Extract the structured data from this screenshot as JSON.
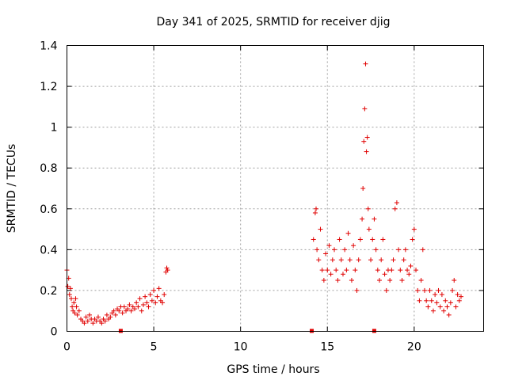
{
  "chart_data": {
    "type": "scatter",
    "title": "Day 341 of 2025, SRMTID for receiver djig",
    "xlabel": "GPS time / hours",
    "ylabel": "SRMTID / TECUs",
    "xlim": [
      0,
      24
    ],
    "ylim": [
      0,
      1.4
    ],
    "xticks": [
      0,
      5,
      10,
      15,
      20
    ],
    "yticks": [
      0,
      0.2,
      0.4,
      0.6,
      0.8,
      1,
      1.2,
      1.4
    ],
    "ytick_labels": [
      "0",
      "0.2",
      "0.4",
      "0.6",
      "0.8",
      "1",
      "1.2",
      "1.4"
    ],
    "grid": true,
    "marker": "+",
    "color": "#e00000",
    "series": [
      {
        "name": "SRMTID",
        "points": [
          [
            0.0,
            0.3
          ],
          [
            0.05,
            0.22
          ],
          [
            0.1,
            0.26
          ],
          [
            0.15,
            0.18
          ],
          [
            0.2,
            0.21
          ],
          [
            0.25,
            0.16
          ],
          [
            0.3,
            0.12
          ],
          [
            0.35,
            0.1
          ],
          [
            0.4,
            0.14
          ],
          [
            0.45,
            0.09
          ],
          [
            0.5,
            0.16
          ],
          [
            0.55,
            0.12
          ],
          [
            0.6,
            0.08
          ],
          [
            0.7,
            0.1
          ],
          [
            0.8,
            0.06
          ],
          [
            0.9,
            0.05
          ],
          [
            1.0,
            0.04
          ],
          [
            1.1,
            0.07
          ],
          [
            1.2,
            0.05
          ],
          [
            1.3,
            0.08
          ],
          [
            1.4,
            0.06
          ],
          [
            1.5,
            0.04
          ],
          [
            1.6,
            0.06
          ],
          [
            1.7,
            0.05
          ],
          [
            1.8,
            0.07
          ],
          [
            1.9,
            0.05
          ],
          [
            2.0,
            0.04
          ],
          [
            2.1,
            0.06
          ],
          [
            2.2,
            0.05
          ],
          [
            2.3,
            0.08
          ],
          [
            2.4,
            0.06
          ],
          [
            2.5,
            0.07
          ],
          [
            2.6,
            0.09
          ],
          [
            2.7,
            0.1
          ],
          [
            2.8,
            0.08
          ],
          [
            2.9,
            0.11
          ],
          [
            3.0,
            0.1
          ],
          [
            3.1,
            0.12
          ],
          [
            3.2,
            0.09
          ],
          [
            3.3,
            0.12
          ],
          [
            3.4,
            0.1
          ],
          [
            3.5,
            0.11
          ],
          [
            3.6,
            0.13
          ],
          [
            3.7,
            0.1
          ],
          [
            3.8,
            0.12
          ],
          [
            3.9,
            0.11
          ],
          [
            4.0,
            0.14
          ],
          [
            4.1,
            0.12
          ],
          [
            4.2,
            0.16
          ],
          [
            4.3,
            0.1
          ],
          [
            4.4,
            0.13
          ],
          [
            4.5,
            0.17
          ],
          [
            4.6,
            0.14
          ],
          [
            4.7,
            0.12
          ],
          [
            4.8,
            0.18
          ],
          [
            4.9,
            0.15
          ],
          [
            5.0,
            0.2
          ],
          [
            5.1,
            0.14
          ],
          [
            5.2,
            0.17
          ],
          [
            5.3,
            0.21
          ],
          [
            5.4,
            0.15
          ],
          [
            5.5,
            0.14
          ],
          [
            5.6,
            0.18
          ],
          [
            5.7,
            0.29
          ],
          [
            5.75,
            0.31
          ],
          [
            5.8,
            0.3
          ],
          [
            14.2,
            0.45
          ],
          [
            14.3,
            0.58
          ],
          [
            14.35,
            0.6
          ],
          [
            14.4,
            0.4
          ],
          [
            14.5,
            0.35
          ],
          [
            14.6,
            0.5
          ],
          [
            14.7,
            0.3
          ],
          [
            14.8,
            0.25
          ],
          [
            14.9,
            0.38
          ],
          [
            15.0,
            0.3
          ],
          [
            15.1,
            0.42
          ],
          [
            15.2,
            0.28
          ],
          [
            15.3,
            0.35
          ],
          [
            15.4,
            0.4
          ],
          [
            15.5,
            0.3
          ],
          [
            15.6,
            0.25
          ],
          [
            15.7,
            0.45
          ],
          [
            15.8,
            0.35
          ],
          [
            15.9,
            0.28
          ],
          [
            16.0,
            0.4
          ],
          [
            16.1,
            0.3
          ],
          [
            16.2,
            0.48
          ],
          [
            16.3,
            0.35
          ],
          [
            16.4,
            0.25
          ],
          [
            16.5,
            0.42
          ],
          [
            16.6,
            0.3
          ],
          [
            16.7,
            0.2
          ],
          [
            16.8,
            0.35
          ],
          [
            16.9,
            0.45
          ],
          [
            17.0,
            0.55
          ],
          [
            17.05,
            0.7
          ],
          [
            17.1,
            0.93
          ],
          [
            17.15,
            1.09
          ],
          [
            17.2,
            1.31
          ],
          [
            17.25,
            0.88
          ],
          [
            17.3,
            0.95
          ],
          [
            17.35,
            0.6
          ],
          [
            17.4,
            0.5
          ],
          [
            17.5,
            0.35
          ],
          [
            17.6,
            0.45
          ],
          [
            17.7,
            0.55
          ],
          [
            17.8,
            0.4
          ],
          [
            17.9,
            0.3
          ],
          [
            18.0,
            0.25
          ],
          [
            18.1,
            0.35
          ],
          [
            18.2,
            0.45
          ],
          [
            18.3,
            0.28
          ],
          [
            18.4,
            0.2
          ],
          [
            18.5,
            0.3
          ],
          [
            18.6,
            0.25
          ],
          [
            18.7,
            0.3
          ],
          [
            18.8,
            0.35
          ],
          [
            18.9,
            0.6
          ],
          [
            19.0,
            0.63
          ],
          [
            19.1,
            0.4
          ],
          [
            19.2,
            0.3
          ],
          [
            19.3,
            0.25
          ],
          [
            19.4,
            0.35
          ],
          [
            19.5,
            0.4
          ],
          [
            19.6,
            0.3
          ],
          [
            19.7,
            0.28
          ],
          [
            19.8,
            0.32
          ],
          [
            19.9,
            0.45
          ],
          [
            20.0,
            0.5
          ],
          [
            20.1,
            0.3
          ],
          [
            20.2,
            0.2
          ],
          [
            20.3,
            0.15
          ],
          [
            20.4,
            0.25
          ],
          [
            20.5,
            0.4
          ],
          [
            20.6,
            0.2
          ],
          [
            20.7,
            0.15
          ],
          [
            20.8,
            0.12
          ],
          [
            20.9,
            0.2
          ],
          [
            21.0,
            0.15
          ],
          [
            21.1,
            0.1
          ],
          [
            21.2,
            0.18
          ],
          [
            21.3,
            0.14
          ],
          [
            21.4,
            0.2
          ],
          [
            21.5,
            0.12
          ],
          [
            21.6,
            0.18
          ],
          [
            21.7,
            0.1
          ],
          [
            21.8,
            0.15
          ],
          [
            21.9,
            0.12
          ],
          [
            22.0,
            0.08
          ],
          [
            22.1,
            0.14
          ],
          [
            22.2,
            0.2
          ],
          [
            22.3,
            0.25
          ],
          [
            22.4,
            0.12
          ],
          [
            22.5,
            0.18
          ],
          [
            22.6,
            0.15
          ],
          [
            22.7,
            0.17
          ]
        ]
      }
    ],
    "markers_on_axis": [
      3.1,
      14.1,
      17.7
    ]
  }
}
